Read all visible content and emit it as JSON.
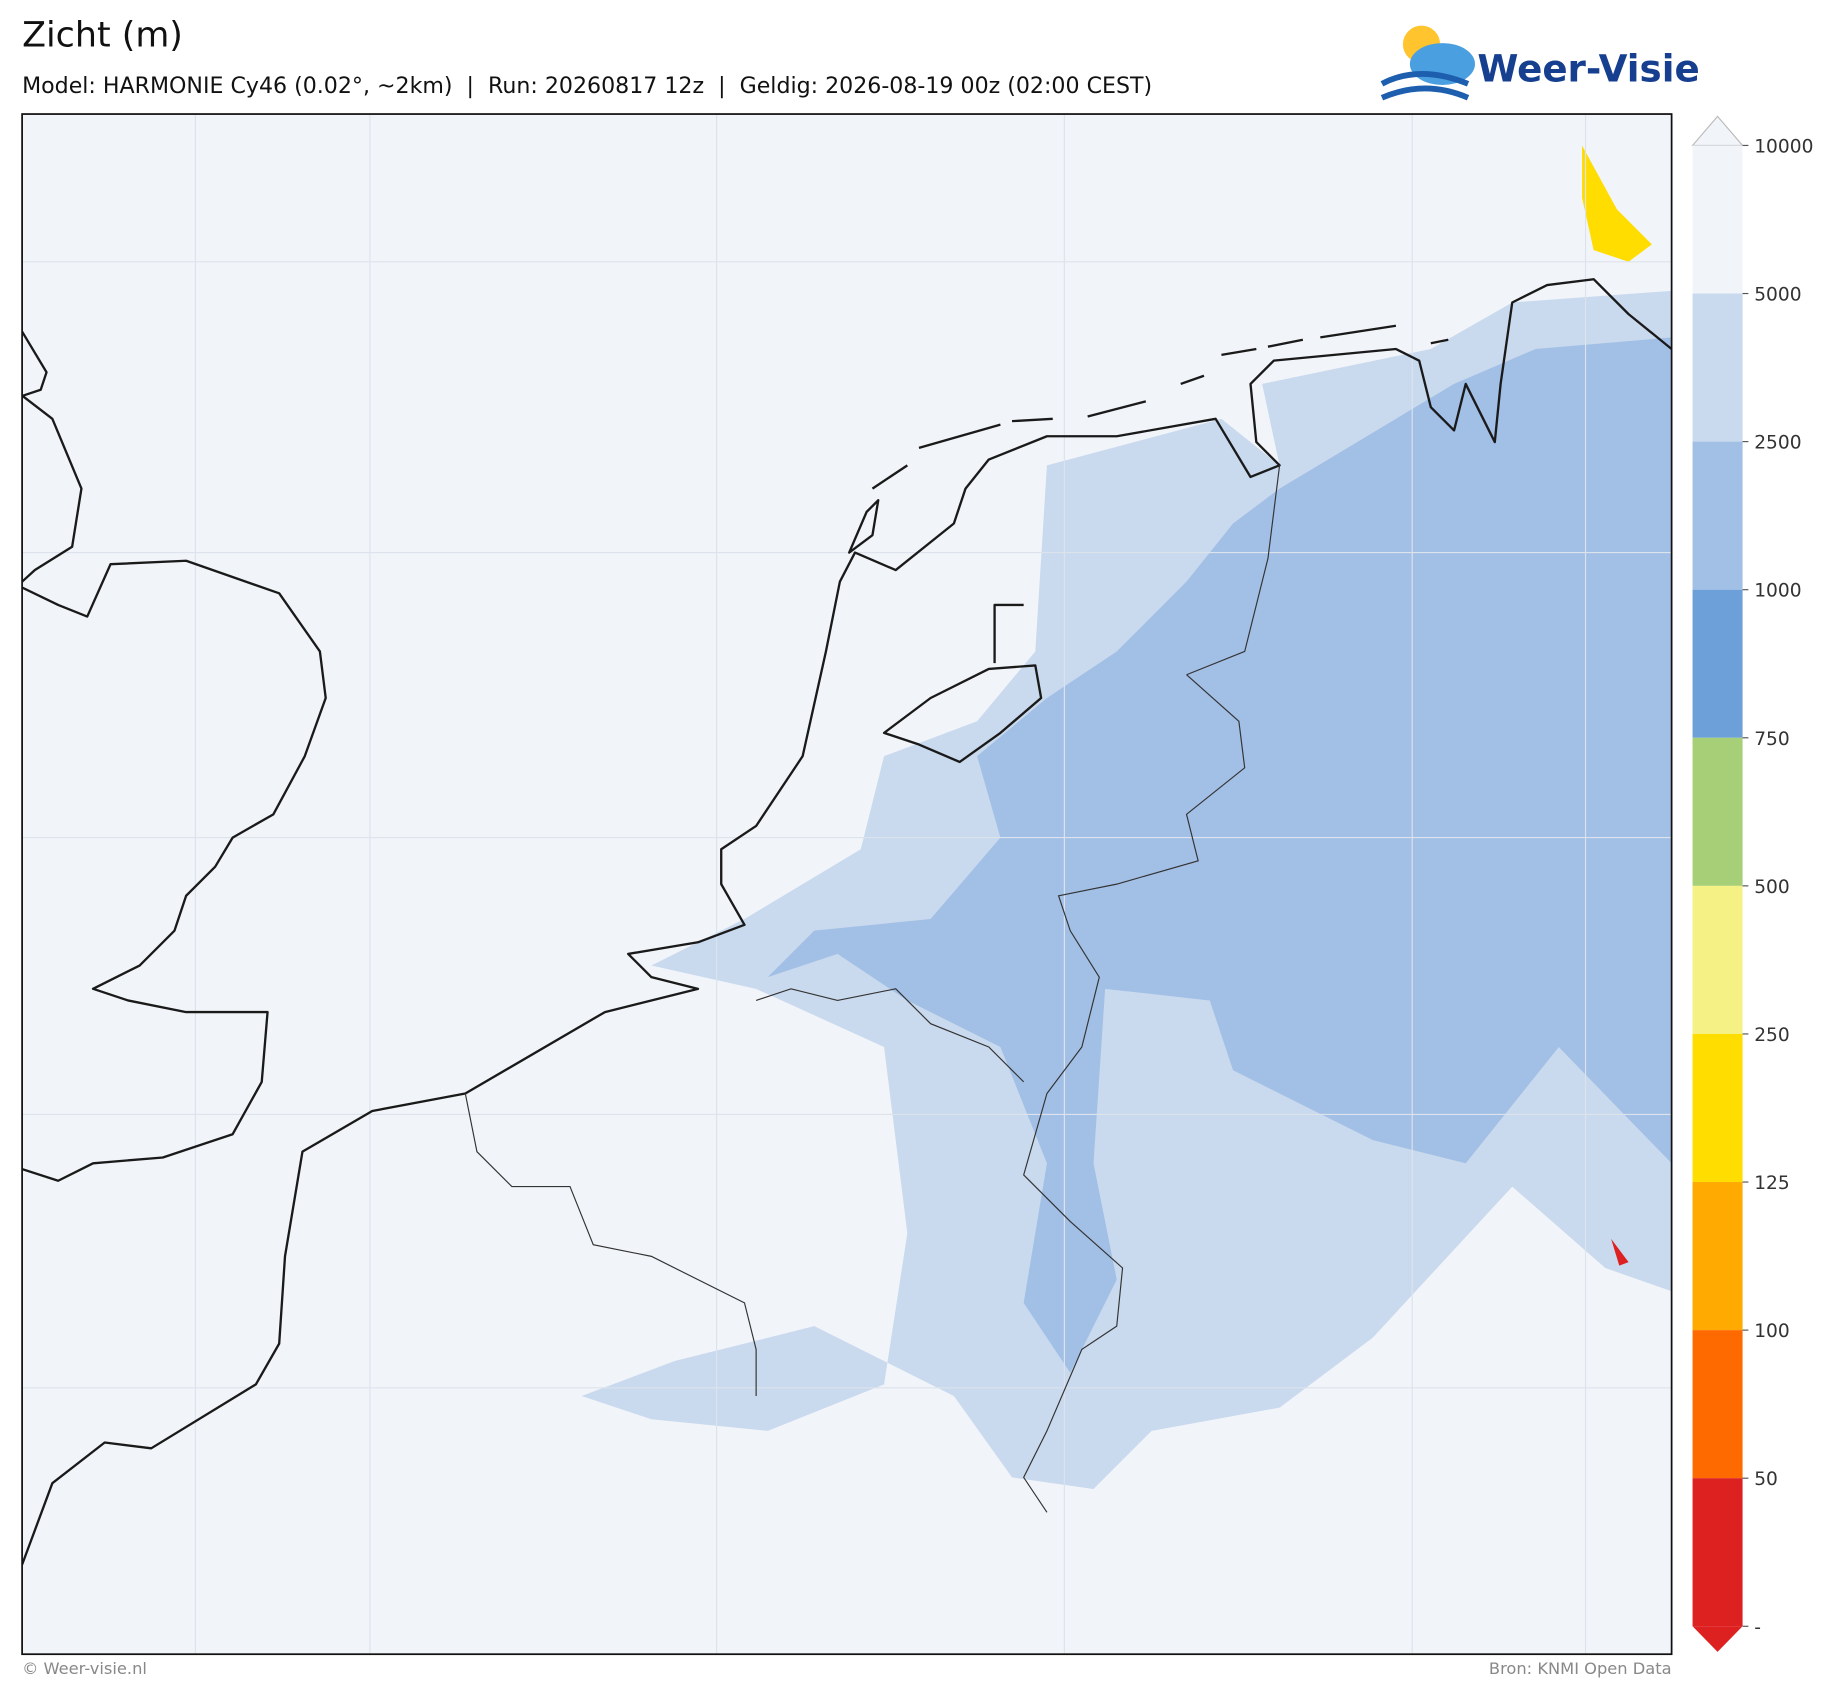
{
  "header": {
    "title": "Zicht (m)",
    "subtitle": "Model: HARMONIE Cy46 (0.02°, ~2km)  |  Run: 20260817 12z  |  Geldig: 2026-08-19 00z (02:00 CEST)",
    "logo": "Weer-Visie"
  },
  "colorbar": {
    "labels": [
      "10000",
      "5000",
      "2500",
      "1000",
      "750",
      "500",
      "250",
      "125",
      "100",
      "50",
      "-"
    ],
    "colors": [
      "#f1f4f9",
      "#c9d9ee",
      "#a2bfe6",
      "#6d9fd8",
      "#a6cf77",
      "#f5f184",
      "#ffdd00",
      "#ffaa00",
      "#ff6a00",
      "#dd2020"
    ]
  },
  "footer": {
    "left": "© Weer-visie.nl",
    "right": "Bron: KNMI Open Data"
  }
}
